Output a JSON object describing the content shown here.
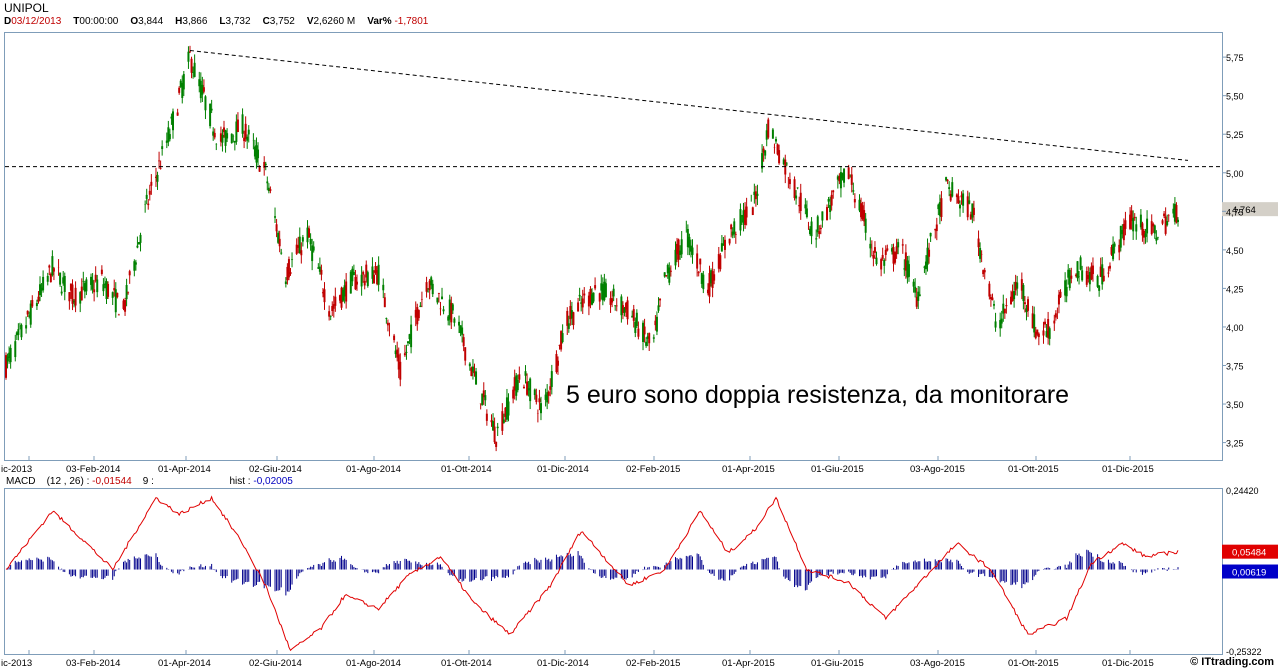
{
  "header": {
    "symbol": "UNIPOL",
    "date_label": "D",
    "date": "03/12/2013",
    "time_label": "T",
    "time": "00:00:00",
    "open_label": "O",
    "open": "3,844",
    "high_label": "H",
    "high": "3,866",
    "low_label": "L",
    "low": "3,732",
    "close_label": "C",
    "close": "3,752",
    "volume_label": "V",
    "volume": "2,6260 M",
    "var_label": "Var%",
    "var": "-1,7801"
  },
  "annotation": "5 euro sono doppia resistenza, da monitorare",
  "last_price_label": "4,764",
  "macd": {
    "label": "MACD",
    "params": "(12 , 26) :",
    "value": "-0,01544",
    "signal_period": "9 :",
    "hist_label": "hist :",
    "hist_value": "-0,02005",
    "axis_top": "0,24420",
    "axis_bottom": "-0,25322",
    "badge_red": "0,05484",
    "badge_blue": "0,00619"
  },
  "x_labels": [
    "ic-2013",
    "03-Feb-2014",
    "01-Apr-2014",
    "02-Giu-2014",
    "01-Ago-2014",
    "01-Ott-2014",
    "01-Dic-2014",
    "02-Feb-2015",
    "01-Apr-2015",
    "01-Giu-2015",
    "03-Ago-2015",
    "01-Ott-2015",
    "01-Dic-2015"
  ],
  "y_labels": [
    "5,75",
    "5,50",
    "5,25",
    "5,00",
    "4,75",
    "4,50",
    "4,25",
    "4,00",
    "3,75",
    "3,50",
    "3,25"
  ],
  "brand": "© ITtrading.com",
  "colors": {
    "up": "#008000",
    "down": "#c00000",
    "macd_line": "#e00000",
    "hist": "#00008b",
    "frame": "#7f9db9"
  },
  "chart_data": [
    {
      "type": "candlestick",
      "title": "UNIPOL",
      "ylim": [
        3.15,
        5.9
      ],
      "resistance_horizontal": 5.04,
      "trendline": [
        {
          "x": "2014-04-01",
          "y": 5.78
        },
        {
          "x": "2015-12-31",
          "y": 5.08
        }
      ],
      "anchor_closes": [
        {
          "x": "2013-12-03",
          "y": 3.75
        },
        {
          "x": "2014-01-02",
          "y": 4.38
        },
        {
          "x": "2014-01-15",
          "y": 4.2
        },
        {
          "x": "2014-02-03",
          "y": 4.3
        },
        {
          "x": "2014-02-17",
          "y": 4.1
        },
        {
          "x": "2014-03-03",
          "y": 4.75
        },
        {
          "x": "2014-03-20",
          "y": 5.3
        },
        {
          "x": "2014-04-01",
          "y": 5.75
        },
        {
          "x": "2014-04-20",
          "y": 5.2
        },
        {
          "x": "2014-05-05",
          "y": 5.3
        },
        {
          "x": "2014-05-20",
          "y": 5.0
        },
        {
          "x": "2014-06-02",
          "y": 4.35
        },
        {
          "x": "2014-06-16",
          "y": 4.6
        },
        {
          "x": "2014-07-01",
          "y": 4.1
        },
        {
          "x": "2014-07-15",
          "y": 4.3
        },
        {
          "x": "2014-08-01",
          "y": 4.35
        },
        {
          "x": "2014-08-15",
          "y": 3.7
        },
        {
          "x": "2014-09-01",
          "y": 4.3
        },
        {
          "x": "2014-09-20",
          "y": 4.05
        },
        {
          "x": "2014-10-01",
          "y": 3.7
        },
        {
          "x": "2014-10-16",
          "y": 3.3
        },
        {
          "x": "2014-11-01",
          "y": 3.7
        },
        {
          "x": "2014-11-15",
          "y": 3.45
        },
        {
          "x": "2014-12-01",
          "y": 4.05
        },
        {
          "x": "2014-12-20",
          "y": 4.25
        },
        {
          "x": "2015-01-10",
          "y": 4.1
        },
        {
          "x": "2015-01-25",
          "y": 3.85
        },
        {
          "x": "2015-02-02",
          "y": 4.3
        },
        {
          "x": "2015-02-16",
          "y": 4.6
        },
        {
          "x": "2015-03-02",
          "y": 4.25
        },
        {
          "x": "2015-03-16",
          "y": 4.6
        },
        {
          "x": "2015-04-01",
          "y": 4.8
        },
        {
          "x": "2015-04-10",
          "y": 5.3
        },
        {
          "x": "2015-04-25",
          "y": 4.95
        },
        {
          "x": "2015-05-10",
          "y": 4.6
        },
        {
          "x": "2015-05-25",
          "y": 4.9
        },
        {
          "x": "2015-06-01",
          "y": 5.0
        },
        {
          "x": "2015-06-20",
          "y": 4.4
        },
        {
          "x": "2015-07-05",
          "y": 4.5
        },
        {
          "x": "2015-07-15",
          "y": 4.2
        },
        {
          "x": "2015-08-03",
          "y": 4.9
        },
        {
          "x": "2015-08-20",
          "y": 4.75
        },
        {
          "x": "2015-09-05",
          "y": 4.0
        },
        {
          "x": "2015-09-20",
          "y": 4.3
        },
        {
          "x": "2015-10-01",
          "y": 3.95
        },
        {
          "x": "2015-10-10",
          "y": 4.0
        },
        {
          "x": "2015-10-25",
          "y": 4.4
        },
        {
          "x": "2015-11-10",
          "y": 4.3
        },
        {
          "x": "2015-11-25",
          "y": 4.6
        },
        {
          "x": "2015-12-01",
          "y": 4.7
        },
        {
          "x": "2015-12-15",
          "y": 4.6
        },
        {
          "x": "2015-12-31",
          "y": 4.76
        }
      ]
    },
    {
      "type": "line",
      "title": "MACD",
      "ylim": [
        -0.25322,
        0.2442
      ],
      "macd_anchors": [
        {
          "x": "2013-12-03",
          "y": 0.0
        },
        {
          "x": "2014-01-02",
          "y": 0.18
        },
        {
          "x": "2014-01-20",
          "y": 0.1
        },
        {
          "x": "2014-02-10",
          "y": 0.0
        },
        {
          "x": "2014-03-10",
          "y": 0.22
        },
        {
          "x": "2014-03-25",
          "y": 0.17
        },
        {
          "x": "2014-04-15",
          "y": 0.22
        },
        {
          "x": "2014-05-05",
          "y": 0.08
        },
        {
          "x": "2014-05-20",
          "y": -0.05
        },
        {
          "x": "2014-06-05",
          "y": -0.25
        },
        {
          "x": "2014-06-25",
          "y": -0.18
        },
        {
          "x": "2014-07-10",
          "y": -0.08
        },
        {
          "x": "2014-08-01",
          "y": -0.12
        },
        {
          "x": "2014-08-20",
          "y": -0.02
        },
        {
          "x": "2014-09-10",
          "y": 0.04
        },
        {
          "x": "2014-10-01",
          "y": -0.1
        },
        {
          "x": "2014-10-25",
          "y": -0.2
        },
        {
          "x": "2014-11-20",
          "y": -0.05
        },
        {
          "x": "2014-12-10",
          "y": 0.12
        },
        {
          "x": "2015-01-10",
          "y": -0.05
        },
        {
          "x": "2015-02-02",
          "y": 0.0
        },
        {
          "x": "2015-02-25",
          "y": 0.18
        },
        {
          "x": "2015-03-15",
          "y": 0.05
        },
        {
          "x": "2015-04-01",
          "y": 0.12
        },
        {
          "x": "2015-04-15",
          "y": 0.22
        },
        {
          "x": "2015-05-05",
          "y": 0.0
        },
        {
          "x": "2015-06-01",
          "y": -0.04
        },
        {
          "x": "2015-06-25",
          "y": -0.15
        },
        {
          "x": "2015-07-15",
          "y": -0.05
        },
        {
          "x": "2015-08-10",
          "y": 0.08
        },
        {
          "x": "2015-09-01",
          "y": 0.0
        },
        {
          "x": "2015-09-25",
          "y": -0.2
        },
        {
          "x": "2015-10-20",
          "y": -0.15
        },
        {
          "x": "2015-11-05",
          "y": 0.02
        },
        {
          "x": "2015-11-25",
          "y": 0.08
        },
        {
          "x": "2015-12-10",
          "y": 0.04
        },
        {
          "x": "2015-12-31",
          "y": 0.055
        }
      ]
    }
  ]
}
